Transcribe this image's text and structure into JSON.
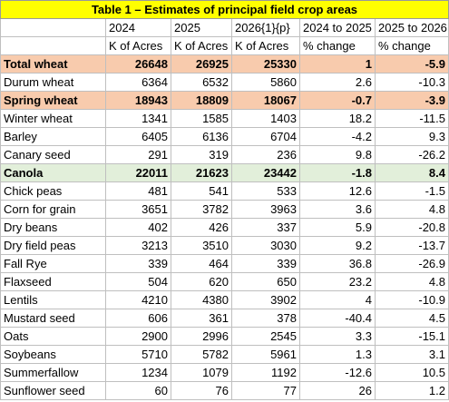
{
  "title": "Table 1 – Estimates of principal field crop areas",
  "header": {
    "years": [
      "2024",
      "2025",
      "2026{1}{p}",
      "2024 to 2025",
      "2025 to 2026"
    ],
    "units": [
      "K of Acres",
      "K of Acres",
      "K of Acres",
      "% change",
      "% change"
    ]
  },
  "rows": [
    {
      "cells": [
        "Total wheat",
        26648,
        26925,
        25330,
        1,
        -5.9
      ],
      "bold": true,
      "fill": "#f8cbad"
    },
    {
      "cells": [
        "Durum wheat",
        6364,
        6532,
        5860,
        2.6,
        -10.3
      ]
    },
    {
      "cells": [
        "Spring wheat",
        18943,
        18809,
        18067,
        -0.7,
        -3.9
      ],
      "bold": true,
      "fill": "#f8cbad"
    },
    {
      "cells": [
        "Winter wheat",
        1341,
        1585,
        1403,
        18.2,
        -11.5
      ]
    },
    {
      "cells": [
        "Barley",
        6405,
        6136,
        6704,
        -4.2,
        9.3
      ]
    },
    {
      "cells": [
        "Canary seed",
        291,
        319,
        236,
        9.8,
        -26.2
      ]
    },
    {
      "cells": [
        "Canola",
        22011,
        21623,
        23442,
        -1.8,
        8.4
      ],
      "bold": true,
      "fill": "#e2efda"
    },
    {
      "cells": [
        "Chick peas",
        481,
        541,
        533,
        12.6,
        -1.5
      ]
    },
    {
      "cells": [
        "Corn for grain",
        3651,
        3782,
        3963,
        3.6,
        4.8
      ]
    },
    {
      "cells": [
        "Dry beans",
        402,
        426,
        337,
        5.9,
        -20.8
      ]
    },
    {
      "cells": [
        "Dry field peas",
        3213,
        3510,
        3030,
        9.2,
        -13.7
      ]
    },
    {
      "cells": [
        "Fall Rye",
        339,
        464,
        339,
        36.8,
        -26.9
      ]
    },
    {
      "cells": [
        "Flaxseed",
        504,
        620,
        650,
        23.2,
        4.8
      ]
    },
    {
      "cells": [
        "Lentils",
        4210,
        4380,
        3902,
        4,
        -10.9
      ]
    },
    {
      "cells": [
        "Mustard seed",
        606,
        361,
        378,
        -40.4,
        4.5
      ]
    },
    {
      "cells": [
        "Oats",
        2900,
        2996,
        2545,
        3.3,
        -15.1
      ]
    },
    {
      "cells": [
        "Soybeans",
        5710,
        5782,
        5961,
        1.3,
        3.1
      ]
    },
    {
      "cells": [
        "Summerfallow",
        1234,
        1079,
        1192,
        -12.6,
        10.5
      ]
    },
    {
      "cells": [
        "Sunflower seed",
        60,
        76,
        77,
        26,
        1.2
      ]
    }
  ]
}
